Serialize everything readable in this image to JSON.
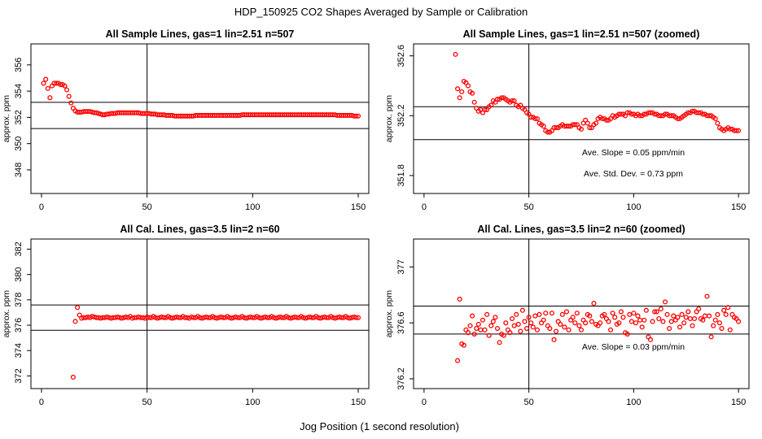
{
  "figure": {
    "title": "HDP_150925  CO2 Shapes Averaged by Sample or Calibration",
    "xlabel": "Jog Position (1 second resolution)"
  },
  "colors": {
    "points": "#ff0000",
    "axes": "#000000"
  },
  "chart_data": [
    {
      "type": "scatter",
      "title": "All Sample Lines, gas=1 lin=2.51 n=507",
      "ylabel": "approx. ppm",
      "xlim": [
        -5,
        155
      ],
      "ylim": [
        346.2,
        357.6
      ],
      "xticks": [
        0,
        50,
        100,
        150
      ],
      "yticks": [
        348,
        350,
        352,
        354,
        356
      ],
      "hlines": [
        353.15,
        351.15
      ],
      "vline": 50,
      "annotations": [],
      "series": [
        {
          "x_start": 1,
          "x_end": 150,
          "values": [
            354.6,
            354.9,
            354.2,
            353.5,
            354.4,
            354.6,
            354.6,
            354.6,
            354.5,
            354.5,
            354.4,
            354.1,
            353.6,
            353.1,
            352.7,
            352.5,
            352.4,
            352.4,
            352.4,
            352.45,
            352.45,
            352.45,
            352.45,
            352.4,
            352.35,
            352.35,
            352.3,
            352.25,
            352.2,
            352.2,
            352.25,
            352.25,
            352.3,
            352.3,
            352.3,
            352.35,
            352.35,
            352.35,
            352.35,
            352.35,
            352.35,
            352.35,
            352.35,
            352.35,
            352.35,
            352.35,
            352.3,
            352.3,
            352.3,
            352.3,
            352.3,
            352.25,
            352.25,
            352.25,
            352.2,
            352.2,
            352.2,
            352.2,
            352.15,
            352.15,
            352.15,
            352.15,
            352.1,
            352.1,
            352.1,
            352.1,
            352.1,
            352.1,
            352.1,
            352.1,
            352.1,
            352.1,
            352.15,
            352.15,
            352.15,
            352.15,
            352.15,
            352.15,
            352.15,
            352.15,
            352.15,
            352.15,
            352.15,
            352.15,
            352.15,
            352.15,
            352.15,
            352.15,
            352.15,
            352.15,
            352.15,
            352.15,
            352.15,
            352.15,
            352.2,
            352.2,
            352.2,
            352.2,
            352.2,
            352.2,
            352.2,
            352.2,
            352.2,
            352.2,
            352.2,
            352.2,
            352.2,
            352.2,
            352.2,
            352.2,
            352.2,
            352.2,
            352.2,
            352.2,
            352.2,
            352.2,
            352.2,
            352.2,
            352.2,
            352.2,
            352.2,
            352.2,
            352.2,
            352.2,
            352.2,
            352.2,
            352.2,
            352.2,
            352.2,
            352.2,
            352.2,
            352.2,
            352.2,
            352.2,
            352.2,
            352.2,
            352.2,
            352.2,
            352.2,
            352.15,
            352.15,
            352.15,
            352.15,
            352.15,
            352.15,
            352.15,
            352.15,
            352.1,
            352.1,
            352.1
          ]
        }
      ]
    },
    {
      "type": "scatter",
      "title": "All Sample Lines, gas=1 lin=2.51 n=507 (zoomed)",
      "ylabel": "approx. ppm",
      "xlim": [
        -5,
        155
      ],
      "ylim": [
        351.68,
        352.68
      ],
      "xticks": [
        0,
        50,
        100,
        150
      ],
      "yticks": [
        351.8,
        352.2,
        352.6
      ],
      "hlines": [
        352.26,
        352.04
      ],
      "vline": 50,
      "annotations": [
        "Ave. Slope =  0.05  ppm/min",
        "Ave. Std. Dev. =  0.73  ppm"
      ],
      "series": [
        {
          "x_start": 15,
          "x_end": 150,
          "values": [
            352.61,
            352.38,
            352.32,
            352.36,
            352.43,
            352.42,
            352.4,
            352.36,
            352.35,
            352.29,
            352.25,
            352.23,
            352.24,
            352.22,
            352.24,
            352.24,
            352.26,
            352.27,
            352.3,
            352.29,
            352.31,
            352.31,
            352.32,
            352.32,
            352.31,
            352.3,
            352.29,
            352.3,
            352.3,
            352.27,
            352.26,
            352.27,
            352.25,
            352.24,
            352.22,
            352.21,
            352.19,
            352.19,
            352.18,
            352.18,
            352.15,
            352.14,
            352.13,
            352.1,
            352.09,
            352.09,
            352.1,
            352.12,
            352.12,
            352.12,
            352.13,
            352.14,
            352.13,
            352.13,
            352.13,
            352.13,
            352.14,
            352.14,
            352.14,
            352.12,
            352.11,
            352.15,
            352.17,
            352.15,
            352.12,
            352.12,
            352.14,
            352.15,
            352.18,
            352.19,
            352.18,
            352.18,
            352.17,
            352.17,
            352.18,
            352.2,
            352.19,
            352.2,
            352.21,
            352.21,
            352.21,
            352.2,
            352.22,
            352.22,
            352.21,
            352.21,
            352.2,
            352.21,
            352.2,
            352.2,
            352.21,
            352.21,
            352.22,
            352.22,
            352.22,
            352.21,
            352.21,
            352.2,
            352.2,
            352.2,
            352.21,
            352.21,
            352.2,
            352.2,
            352.2,
            352.19,
            352.18,
            352.18,
            352.19,
            352.2,
            352.21,
            352.22,
            352.22,
            352.23,
            352.23,
            352.22,
            352.22,
            352.22,
            352.21,
            352.21,
            352.2,
            352.2,
            352.2,
            352.19,
            352.18,
            352.15,
            352.12,
            352.11,
            352.1,
            352.11,
            352.12,
            352.11,
            352.11,
            352.1,
            352.1,
            352.1
          ]
        }
      ]
    },
    {
      "type": "scatter",
      "title": "All Cal. Lines, gas=3.5 lin=2 n=60",
      "ylabel": "approx. ppm",
      "xlim": [
        -5,
        155
      ],
      "ylim": [
        371,
        382.8
      ],
      "xticks": [
        0,
        50,
        100,
        150
      ],
      "yticks": [
        372,
        374,
        376,
        378,
        380,
        382
      ],
      "hlines": [
        377.6,
        375.6
      ],
      "vline": 50,
      "annotations": [],
      "series": [
        {
          "x_start": 15,
          "x_end": 150,
          "values": [
            371.9,
            376.3,
            377.4,
            376.8,
            376.55,
            376.6,
            376.6,
            376.65,
            376.6,
            376.7,
            376.65,
            376.6,
            376.6,
            376.55,
            376.6,
            376.6,
            376.65,
            376.6,
            376.55,
            376.6,
            376.6,
            376.65,
            376.6,
            376.55,
            376.6,
            376.65,
            376.6,
            376.7,
            376.55,
            376.6,
            376.6,
            376.65,
            376.6,
            376.6,
            376.55,
            376.65,
            376.6,
            376.6,
            376.7,
            376.6,
            376.55,
            376.6,
            376.65,
            376.6,
            376.6,
            376.7,
            376.6,
            376.55,
            376.6,
            376.65,
            376.6,
            376.6,
            376.7,
            376.6,
            376.6,
            376.55,
            376.65,
            376.6,
            376.6,
            376.7,
            376.6,
            376.55,
            376.6,
            376.65,
            376.6,
            376.6,
            376.7,
            376.6,
            376.55,
            376.6,
            376.65,
            376.6,
            376.6,
            376.7,
            376.6,
            376.55,
            376.6,
            376.65,
            376.6,
            376.6,
            376.7,
            376.6,
            376.55,
            376.6,
            376.65,
            376.6,
            376.6,
            376.7,
            376.6,
            376.55,
            376.6,
            376.65,
            376.6,
            376.6,
            376.7,
            376.6,
            376.55,
            376.6,
            376.65,
            376.6,
            376.6,
            376.7,
            376.6,
            376.55,
            376.6,
            376.65,
            376.6,
            376.6,
            376.7,
            376.6,
            376.55,
            376.6,
            376.65,
            376.6,
            376.6,
            376.7,
            376.6,
            376.55,
            376.6,
            376.65,
            376.6,
            376.6,
            376.7,
            376.6,
            376.55,
            376.6,
            376.65,
            376.6,
            376.6,
            376.7,
            376.6,
            376.55,
            376.6,
            376.65,
            376.6,
            376.6
          ]
        }
      ]
    },
    {
      "type": "scatter",
      "title": "All Cal. Lines, gas=3.5 lin=2 n=60 (zoomed)",
      "ylabel": "approx. ppm",
      "xlim": [
        -5,
        155
      ],
      "ylim": [
        376.13,
        377.2
      ],
      "xticks": [
        0,
        50,
        100,
        150
      ],
      "yticks": [
        376.2,
        376.6,
        377.0
      ],
      "hlines": [
        376.72,
        376.52
      ],
      "vline": 50,
      "annotations": [
        "Ave. Slope =  0.03  ppm/min"
      ],
      "series": [
        {
          "x_start": 16,
          "x_end": 150,
          "values": [
            376.33,
            376.77,
            376.45,
            376.44,
            376.55,
            376.53,
            376.58,
            376.65,
            376.52,
            376.56,
            376.59,
            376.55,
            376.62,
            376.55,
            376.66,
            376.51,
            376.58,
            376.61,
            376.64,
            376.56,
            376.46,
            376.52,
            376.51,
            376.6,
            376.55,
            376.53,
            376.63,
            376.58,
            376.66,
            376.59,
            376.54,
            376.69,
            376.61,
            376.56,
            376.64,
            376.6,
            376.57,
            376.65,
            376.55,
            376.66,
            376.6,
            376.62,
            376.67,
            376.58,
            376.56,
            376.67,
            376.48,
            376.54,
            376.61,
            376.59,
            376.66,
            376.57,
            376.68,
            376.55,
            376.62,
            376.64,
            376.6,
            376.67,
            376.58,
            376.55,
            376.62,
            376.6,
            376.66,
            376.65,
            376.61,
            376.74,
            376.59,
            376.58,
            376.6,
            376.65,
            376.66,
            376.63,
            376.61,
            376.55,
            376.67,
            376.64,
            376.59,
            376.6,
            376.68,
            376.64,
            376.53,
            376.52,
            376.66,
            376.61,
            376.67,
            376.6,
            376.65,
            376.62,
            376.57,
            376.62,
            376.69,
            376.5,
            376.48,
            376.61,
            376.68,
            376.68,
            376.63,
            376.7,
            376.61,
            376.75,
            376.66,
            376.56,
            376.61,
            376.65,
            376.62,
            376.64,
            376.57,
            376.66,
            376.6,
            376.64,
            376.68,
            376.63,
            376.58,
            376.63,
            376.68,
            376.7,
            376.63,
            376.62,
            376.65,
            376.79,
            376.65,
            376.5,
            376.58,
            376.62,
            376.66,
            376.6,
            376.56,
            376.69,
            376.66,
            376.71,
            376.55,
            376.66,
            376.64,
            376.63,
            376.61
          ]
        }
      ]
    }
  ]
}
